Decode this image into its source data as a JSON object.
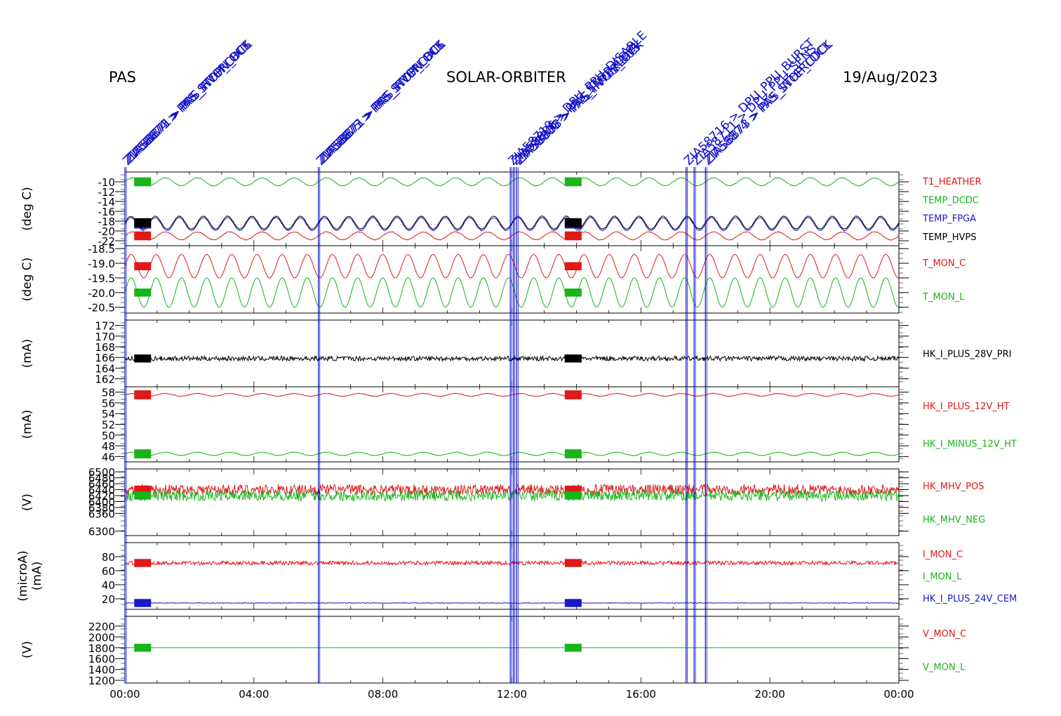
{
  "header": {
    "left": "PAS",
    "center": "SOLAR-ORBITER",
    "right": "19/Aug/2023"
  },
  "colors": {
    "red": "#e01818",
    "green": "#18b418",
    "blue": "#1818d0",
    "black": "#000000",
    "event": "#1010c8"
  },
  "events": [
    {
      "time_h": 0.0,
      "labels": [
        "ZIA58874 > PAS_STOP_CDCL",
        "ZIA58873 > PAS_INTERLOCK",
        "ZIA58871 > PAS_HVON_BUS"
      ]
    },
    {
      "time_h": 6.0,
      "labels": [
        "ZIA58875 > PAS_STOP_CDCL",
        "ZIA58873 > PAS_INTERLOCK",
        "ZIA58871 > PAS_HVON_BUS"
      ]
    },
    {
      "time_h": 11.95,
      "labels": [
        "ZIA58719 > DPU_PPU_DISABLE"
      ]
    },
    {
      "time_h": 12.05,
      "labels": [
        "ZIA58806 > PAS_STOP_CDCL"
      ]
    },
    {
      "time_h": 12.15,
      "labels": [
        "ZIA58800 > PAS_HVON_BUS",
        "ZIA58808 > PAS_INTERLOCK"
      ]
    },
    {
      "time_h": 17.4,
      "labels": [
        "ZIA58716 > DPU_PPU_BURST"
      ]
    },
    {
      "time_h": 17.65,
      "labels": [
        "ZIA58711 > DPU_PPU_SENS"
      ]
    },
    {
      "time_h": 18.0,
      "labels": [
        "ZIA58874 > PAS_STOP_CDCL",
        "ZIA58873 > PAS_INTERLOCK"
      ]
    }
  ],
  "chart_data": {
    "type": "line",
    "x_range_hours": [
      0,
      24
    ],
    "x_ticks": [
      "00:00",
      "04:00",
      "08:00",
      "12:00",
      "16:00",
      "20:00",
      "00:00"
    ],
    "panels": [
      {
        "ylabel": "(deg C)",
        "ylim": [
          -23,
          -8
        ],
        "ticks": [
          "-10",
          "-12",
          "-14",
          "-16",
          "-18",
          "-20",
          "-22"
        ],
        "tick_values": [
          -10,
          -12,
          -14,
          -16,
          -18,
          -20,
          -22
        ],
        "series": [
          {
            "name": "T1_HEATHER",
            "color": "red",
            "mean": -21.0,
            "amp": 0.8,
            "period_h": 1.0,
            "noise": 0.05
          },
          {
            "name": "TEMP_DCDC",
            "color": "green",
            "mean": -10.0,
            "amp": 0.8,
            "period_h": 1.0,
            "noise": 0.05
          },
          {
            "name": "TEMP_FPGA",
            "color": "blue",
            "mean": -18.6,
            "amp": 1.3,
            "period_h": 0.75,
            "noise": 0.05
          },
          {
            "name": "TEMP_HVPS",
            "color": "black",
            "mean": -18.3,
            "amp": 1.3,
            "period_h": 0.75,
            "noise": 0.05
          }
        ]
      },
      {
        "ylabel": "(deg C)",
        "ylim": [
          -20.7,
          -18.4
        ],
        "ticks": [
          "-18.5",
          "-19.0",
          "-19.5",
          "-20.0",
          "-20.5"
        ],
        "tick_values": [
          -18.5,
          -19.0,
          -19.5,
          -20.0,
          -20.5
        ],
        "series": [
          {
            "name": "T_MON_C",
            "color": "red",
            "mean": -19.1,
            "amp": 0.4,
            "period_h": 0.78,
            "noise": 0.01
          },
          {
            "name": "T_MON_L",
            "color": "green",
            "mean": -20.0,
            "amp": 0.5,
            "period_h": 0.78,
            "noise": 0.01
          }
        ]
      },
      {
        "ylabel": "(mA)",
        "ylim": [
          160.5,
          173
        ],
        "ticks": [
          "172",
          "170",
          "168",
          "166",
          "164",
          "162"
        ],
        "tick_values": [
          172,
          170,
          168,
          166,
          164,
          162
        ],
        "series": [
          {
            "name": "HK_I_PLUS_28V_PRI",
            "color": "black",
            "mean": 165.8,
            "amp": 0.0,
            "period_h": 1.0,
            "noise": 0.35
          }
        ]
      },
      {
        "ylabel": "(mA)",
        "ylim": [
          45,
          59
        ],
        "ticks": [
          "58",
          "56",
          "54",
          "52",
          "50",
          "48",
          "46"
        ],
        "tick_values": [
          58,
          56,
          54,
          52,
          50,
          48,
          46
        ],
        "series": [
          {
            "name": "HK_I_PLUS_12V_HT",
            "color": "red",
            "mean": 57.5,
            "amp": 0.25,
            "period_h": 1.0,
            "noise": 0.04
          },
          {
            "name": "HK_I_MINUS_12V_HT",
            "color": "green",
            "mean": 46.5,
            "amp": 0.3,
            "period_h": 1.0,
            "noise": 0.04
          }
        ]
      },
      {
        "ylabel": "(V)",
        "ylim": [
          6285,
          6510
        ],
        "ticks": [
          "6500",
          "6480",
          "6460",
          "6440",
          "6420",
          "6400",
          "6380",
          "6360",
          "6300"
        ],
        "tick_values": [
          6500,
          6480,
          6460,
          6440,
          6420,
          6400,
          6380,
          6360,
          6300
        ],
        "series": [
          {
            "name": "HK_MHV_POS",
            "color": "red",
            "mean": 6440,
            "amp": 0,
            "period_h": 1.0,
            "noise": 0.8
          },
          {
            "name": "HK_MHV_NEG",
            "color": "green",
            "mean": 6420,
            "amp": 0,
            "period_h": 1.0,
            "noise": 0.8
          }
        ]
      },
      {
        "ylabel": "(microA)",
        "ylabel2": "(mA)",
        "ylim": [
          5,
          100
        ],
        "ticks": [
          "80",
          "60",
          "40",
          "20"
        ],
        "tick_values": [
          80,
          60,
          40,
          20
        ],
        "series": [
          {
            "name": "I_MON_C",
            "color": "red",
            "mean": 71,
            "amp": 0,
            "period_h": 1.0,
            "noise": 0.3
          },
          {
            "name": "I_MON_L",
            "color": "green",
            "mean": null,
            "amp": 0,
            "period_h": 1.0,
            "noise": 0
          },
          {
            "name": "HK_I_PLUS_24V_CEM",
            "color": "blue",
            "mean": 14,
            "amp": 0,
            "period_h": 1.0,
            "noise": 0.05
          }
        ]
      },
      {
        "ylabel": "(V)",
        "ylim": [
          1150,
          2380
        ],
        "ticks": [
          "2200",
          "2000",
          "1800",
          "1600",
          "1400",
          "1200"
        ],
        "tick_values": [
          2200,
          2000,
          1800,
          1600,
          1400,
          1200
        ],
        "series": [
          {
            "name": "V_MON_C",
            "color": "red",
            "mean": null,
            "amp": 0,
            "period_h": 1.0,
            "noise": 0
          },
          {
            "name": "V_MON_L",
            "color": "green",
            "mean": 1800,
            "amp": 0,
            "period_h": 1.0,
            "noise": 0
          }
        ]
      }
    ]
  }
}
